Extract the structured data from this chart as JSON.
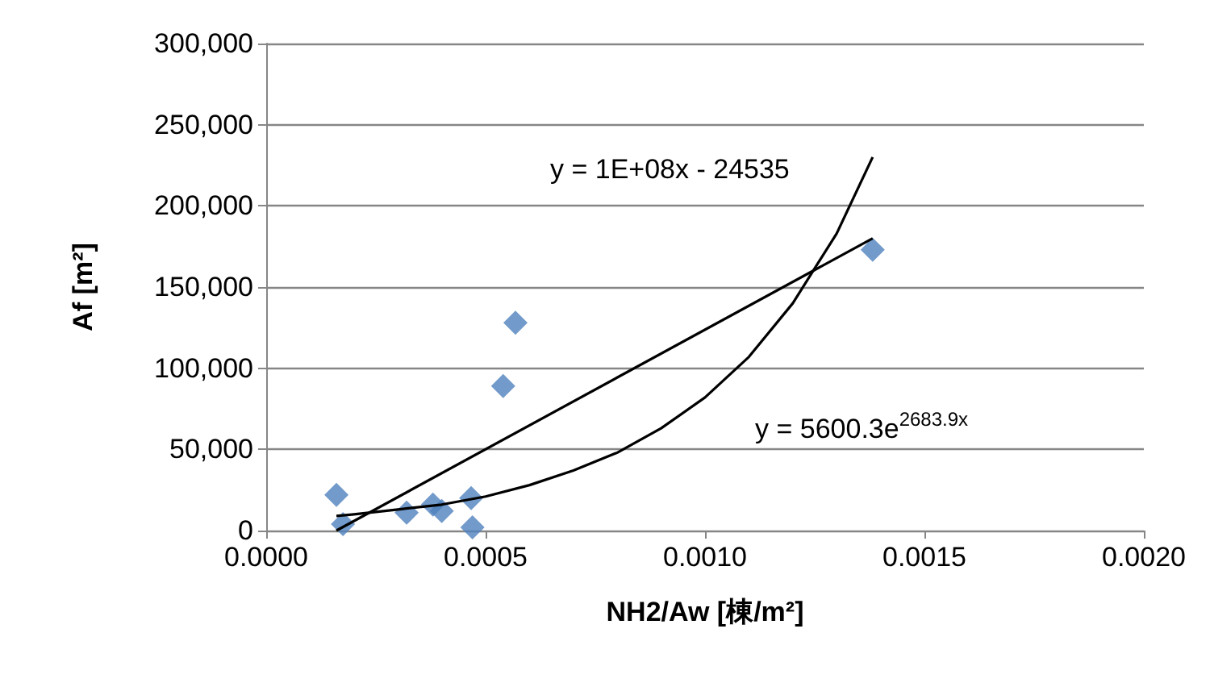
{
  "chart_data": {
    "type": "scatter",
    "xlabel": "NH2/Aw [棟/m²]",
    "ylabel": "Af [m²]",
    "series": [
      {
        "color": "#4f81bd",
        "marker": "diamond",
        "x": [
          0.00016,
          0.000175,
          0.00032,
          0.00038,
          0.0004,
          0.000467,
          0.00047,
          0.00054,
          0.000568,
          0.001382
        ],
        "values": [
          22000,
          4000,
          11000,
          16000,
          12000,
          20000,
          2000,
          89000,
          128000,
          173000
        ]
      },
      {
        "type": "line",
        "color": "#000000",
        "marker": "none",
        "x": [
          0.00016,
          0.001382
        ],
        "values": [
          0,
          180000
        ]
      },
      {
        "type": "line",
        "color": "#000000",
        "marker": "none",
        "x": [
          0.00016,
          0.0002,
          0.0003,
          0.0004,
          0.0005,
          0.0006,
          0.0007,
          0.0008,
          0.0009,
          0.001,
          0.0011,
          0.0012,
          0.0013,
          0.001382
        ],
        "values": [
          9000,
          10000,
          13000,
          16000,
          21000,
          28000,
          37000,
          48000,
          63000,
          82000,
          107000,
          140000,
          183000,
          230000
        ]
      }
    ],
    "annotations": [
      "y = 1E+08x - 24535",
      "y = 5600.3e$^{2683.9x}$"
    ],
    "xlim": [
      0,
      0.002
    ],
    "ylim": [
      0,
      300000
    ],
    "xticks": [
      {
        "value": 0,
        "label": "0.0000"
      },
      {
        "value": 0.0005,
        "label": "0.0005"
      },
      {
        "value": 0.001,
        "label": "0.0010"
      },
      {
        "value": 0.0015,
        "label": "0.0015"
      },
      {
        "value": 0.002,
        "label": "0.0020"
      }
    ],
    "yticks": [
      0,
      {
        "value": 50000,
        "label": "50,000"
      },
      {
        "value": 100000,
        "label": "100,000"
      },
      {
        "value": 150000,
        "label": "150,000"
      },
      {
        "value": 200000,
        "label": "200,000"
      },
      {
        "value": 250000,
        "label": "250,000"
      },
      {
        "value": 300000,
        "label": "300,000"
      }
    ],
    "grid": "y"
  }
}
